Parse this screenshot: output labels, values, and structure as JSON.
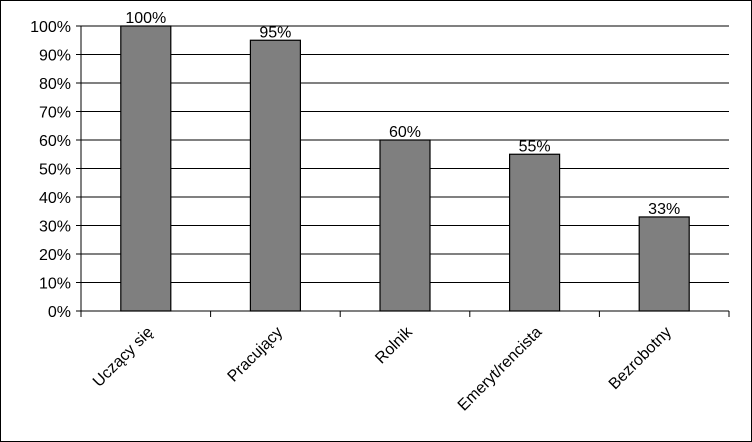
{
  "chart_data": {
    "type": "bar",
    "categories": [
      "Uczący się",
      "Pracujący",
      "Rolnik",
      "Emeryt/rencista",
      "Bezrobotny"
    ],
    "values": [
      100,
      95,
      60,
      55,
      33
    ],
    "data_labels": [
      "100%",
      "95%",
      "60%",
      "55%",
      "33%"
    ],
    "yticks": [
      "0%",
      "10%",
      "20%",
      "30%",
      "40%",
      "50%",
      "60%",
      "70%",
      "80%",
      "90%",
      "100%"
    ],
    "ylim": [
      0,
      100
    ],
    "title": "",
    "xlabel": "",
    "ylabel": "",
    "grid": true,
    "legend": "none",
    "colors": {
      "bar_fill": "#7f7f7f",
      "bar_stroke": "#000000",
      "grid": "#000000",
      "text": "#000000"
    }
  }
}
